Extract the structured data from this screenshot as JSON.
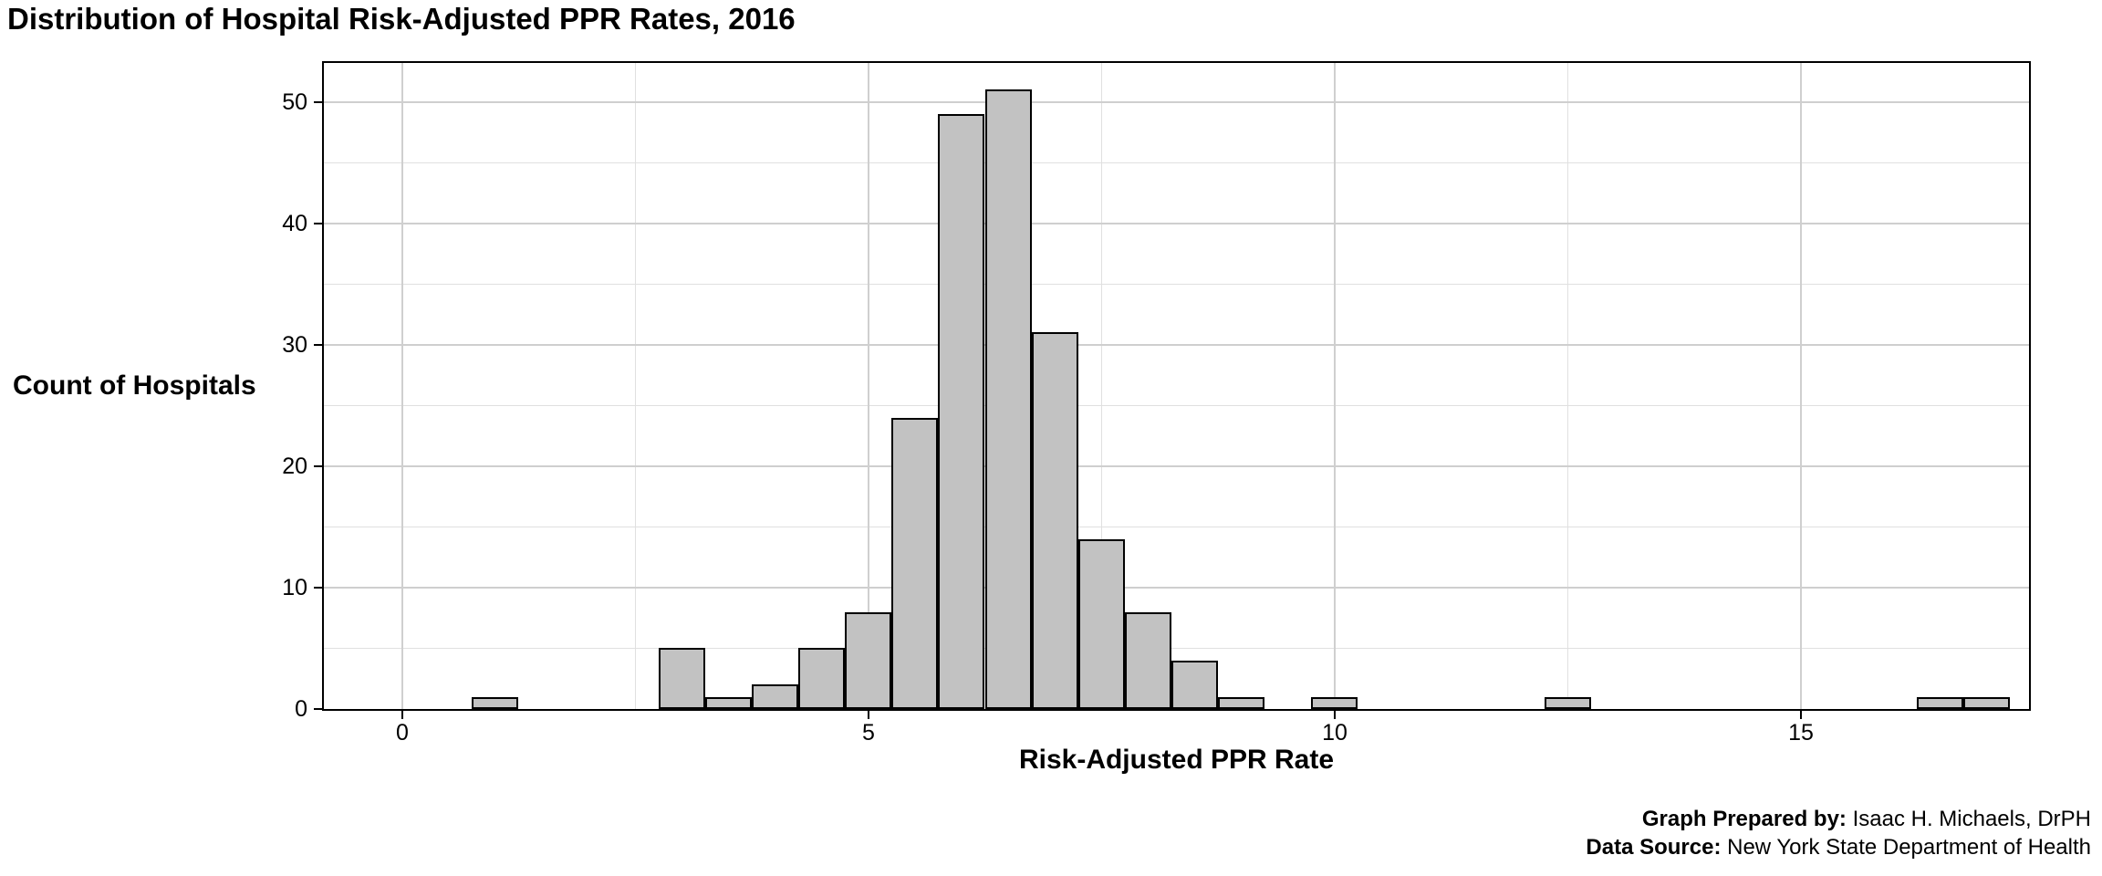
{
  "title": "Distribution of Hospital Risk-Adjusted PPR Rates, 2016",
  "chart_data": {
    "type": "bar",
    "subtype": "histogram",
    "title": "Distribution of Hospital Risk-Adjusted PPR Rates, 2016",
    "xlabel": "Risk-Adjusted PPR Rate",
    "ylabel": "Count of Hospitals",
    "bin_width": 0.5,
    "bins": [
      {
        "center": 1.0,
        "count": 1
      },
      {
        "center": 3.0,
        "count": 5
      },
      {
        "center": 3.5,
        "count": 1
      },
      {
        "center": 4.0,
        "count": 2
      },
      {
        "center": 4.5,
        "count": 5
      },
      {
        "center": 5.0,
        "count": 8
      },
      {
        "center": 5.5,
        "count": 24
      },
      {
        "center": 6.0,
        "count": 49
      },
      {
        "center": 6.5,
        "count": 51
      },
      {
        "center": 7.0,
        "count": 31
      },
      {
        "center": 7.5,
        "count": 14
      },
      {
        "center": 8.0,
        "count": 8
      },
      {
        "center": 8.5,
        "count": 4
      },
      {
        "center": 9.0,
        "count": 1
      },
      {
        "center": 10.0,
        "count": 1
      },
      {
        "center": 12.5,
        "count": 1
      },
      {
        "center": 16.5,
        "count": 1
      },
      {
        "center": 17.0,
        "count": 1
      }
    ],
    "x_ticks": [
      0,
      5,
      10,
      15
    ],
    "x_minor_ticks": [
      2.5,
      7.5,
      12.5,
      17.5
    ],
    "y_ticks": [
      0,
      10,
      20,
      30,
      40,
      50
    ],
    "y_minor_ticks": [
      5,
      15,
      25,
      35,
      45
    ],
    "xlim": [
      -0.84,
      17.45
    ],
    "ylim": [
      0,
      53.2
    ],
    "grid": true,
    "legend_position": "none",
    "colors": {
      "bar_fill": "#C2C2C2",
      "bar_stroke": "#000000",
      "grid_major": "#CFCFCF",
      "grid_minor": "#E0E0E0",
      "panel_border": "#000000",
      "background": "#FFFFFF",
      "text": "#000000"
    }
  },
  "footer": {
    "prepared_by_label": "Graph Prepared by:",
    "prepared_by_value": " Isaac H. Michaels, DrPH",
    "source_label": "Data Source:",
    "source_value": " New York State Department of Health"
  }
}
